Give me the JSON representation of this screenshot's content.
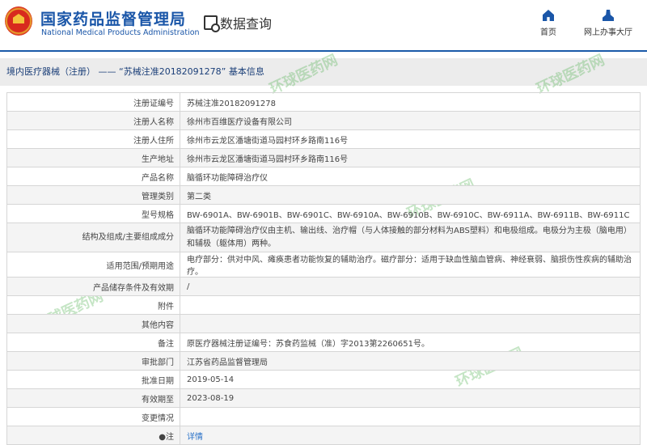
{
  "header": {
    "title_cn": "国家药品监督管理局",
    "title_en": "National Medical Products Administration",
    "query_label": "数据查询",
    "nav": [
      {
        "label": "首页",
        "icon": "home-icon"
      },
      {
        "label": "网上办事大厅",
        "icon": "user-icon"
      }
    ]
  },
  "breadcrumb": "境内医疗器械（注册） —— “苏械注准20182091278” 基本信息",
  "watermark": "环球医药网",
  "rows": [
    {
      "label": "注册证编号",
      "value": "苏械注准20182091278"
    },
    {
      "label": "注册人名称",
      "value": "徐州市百维医疗设备有限公司"
    },
    {
      "label": "注册人住所",
      "value": "徐州市云龙区潘塘街道马园村环乡路南116号"
    },
    {
      "label": "生产地址",
      "value": "徐州市云龙区潘塘街道马园村环乡路南116号"
    },
    {
      "label": "产品名称",
      "value": "脑循环功能障碍治疗仪"
    },
    {
      "label": "管理类别",
      "value": "第二类"
    },
    {
      "label": "型号规格",
      "value": "BW-6901A、BW-6901B、BW-6901C、BW-6910A、BW-6910B、BW-6910C、BW-6911A、BW-6911B、BW-6911C"
    },
    {
      "label": "结构及组成/主要组成成分",
      "value": "脑循环功能障碍治疗仪由主机、输出线、治疗帽（与人体接触的部分材料为ABS塑料）和电极组成。电极分为主极（脑电用）和辅极（躯体用）两种。"
    },
    {
      "label": "适用范围/预期用途",
      "value": "电疗部分：供对中风、瘫痪患者功能恢复的辅助治疗。磁疗部分：适用于缺血性脑血管病、神经衰弱、脑损伤性疾病的辅助治疗。"
    },
    {
      "label": "产品储存条件及有效期",
      "value": "/"
    },
    {
      "label": "附件",
      "value": ""
    },
    {
      "label": "其他内容",
      "value": ""
    },
    {
      "label": "备注",
      "value": "原医疗器械注册证编号：苏食药监械（准）字2013第2260651号。"
    },
    {
      "label": "审批部门",
      "value": "江苏省药品监督管理局"
    },
    {
      "label": "批准日期",
      "value": "2019-05-14"
    },
    {
      "label": "有效期至",
      "value": "2023-08-19"
    },
    {
      "label": "变更情况",
      "value": ""
    },
    {
      "label": "●注",
      "value": "详情"
    }
  ]
}
